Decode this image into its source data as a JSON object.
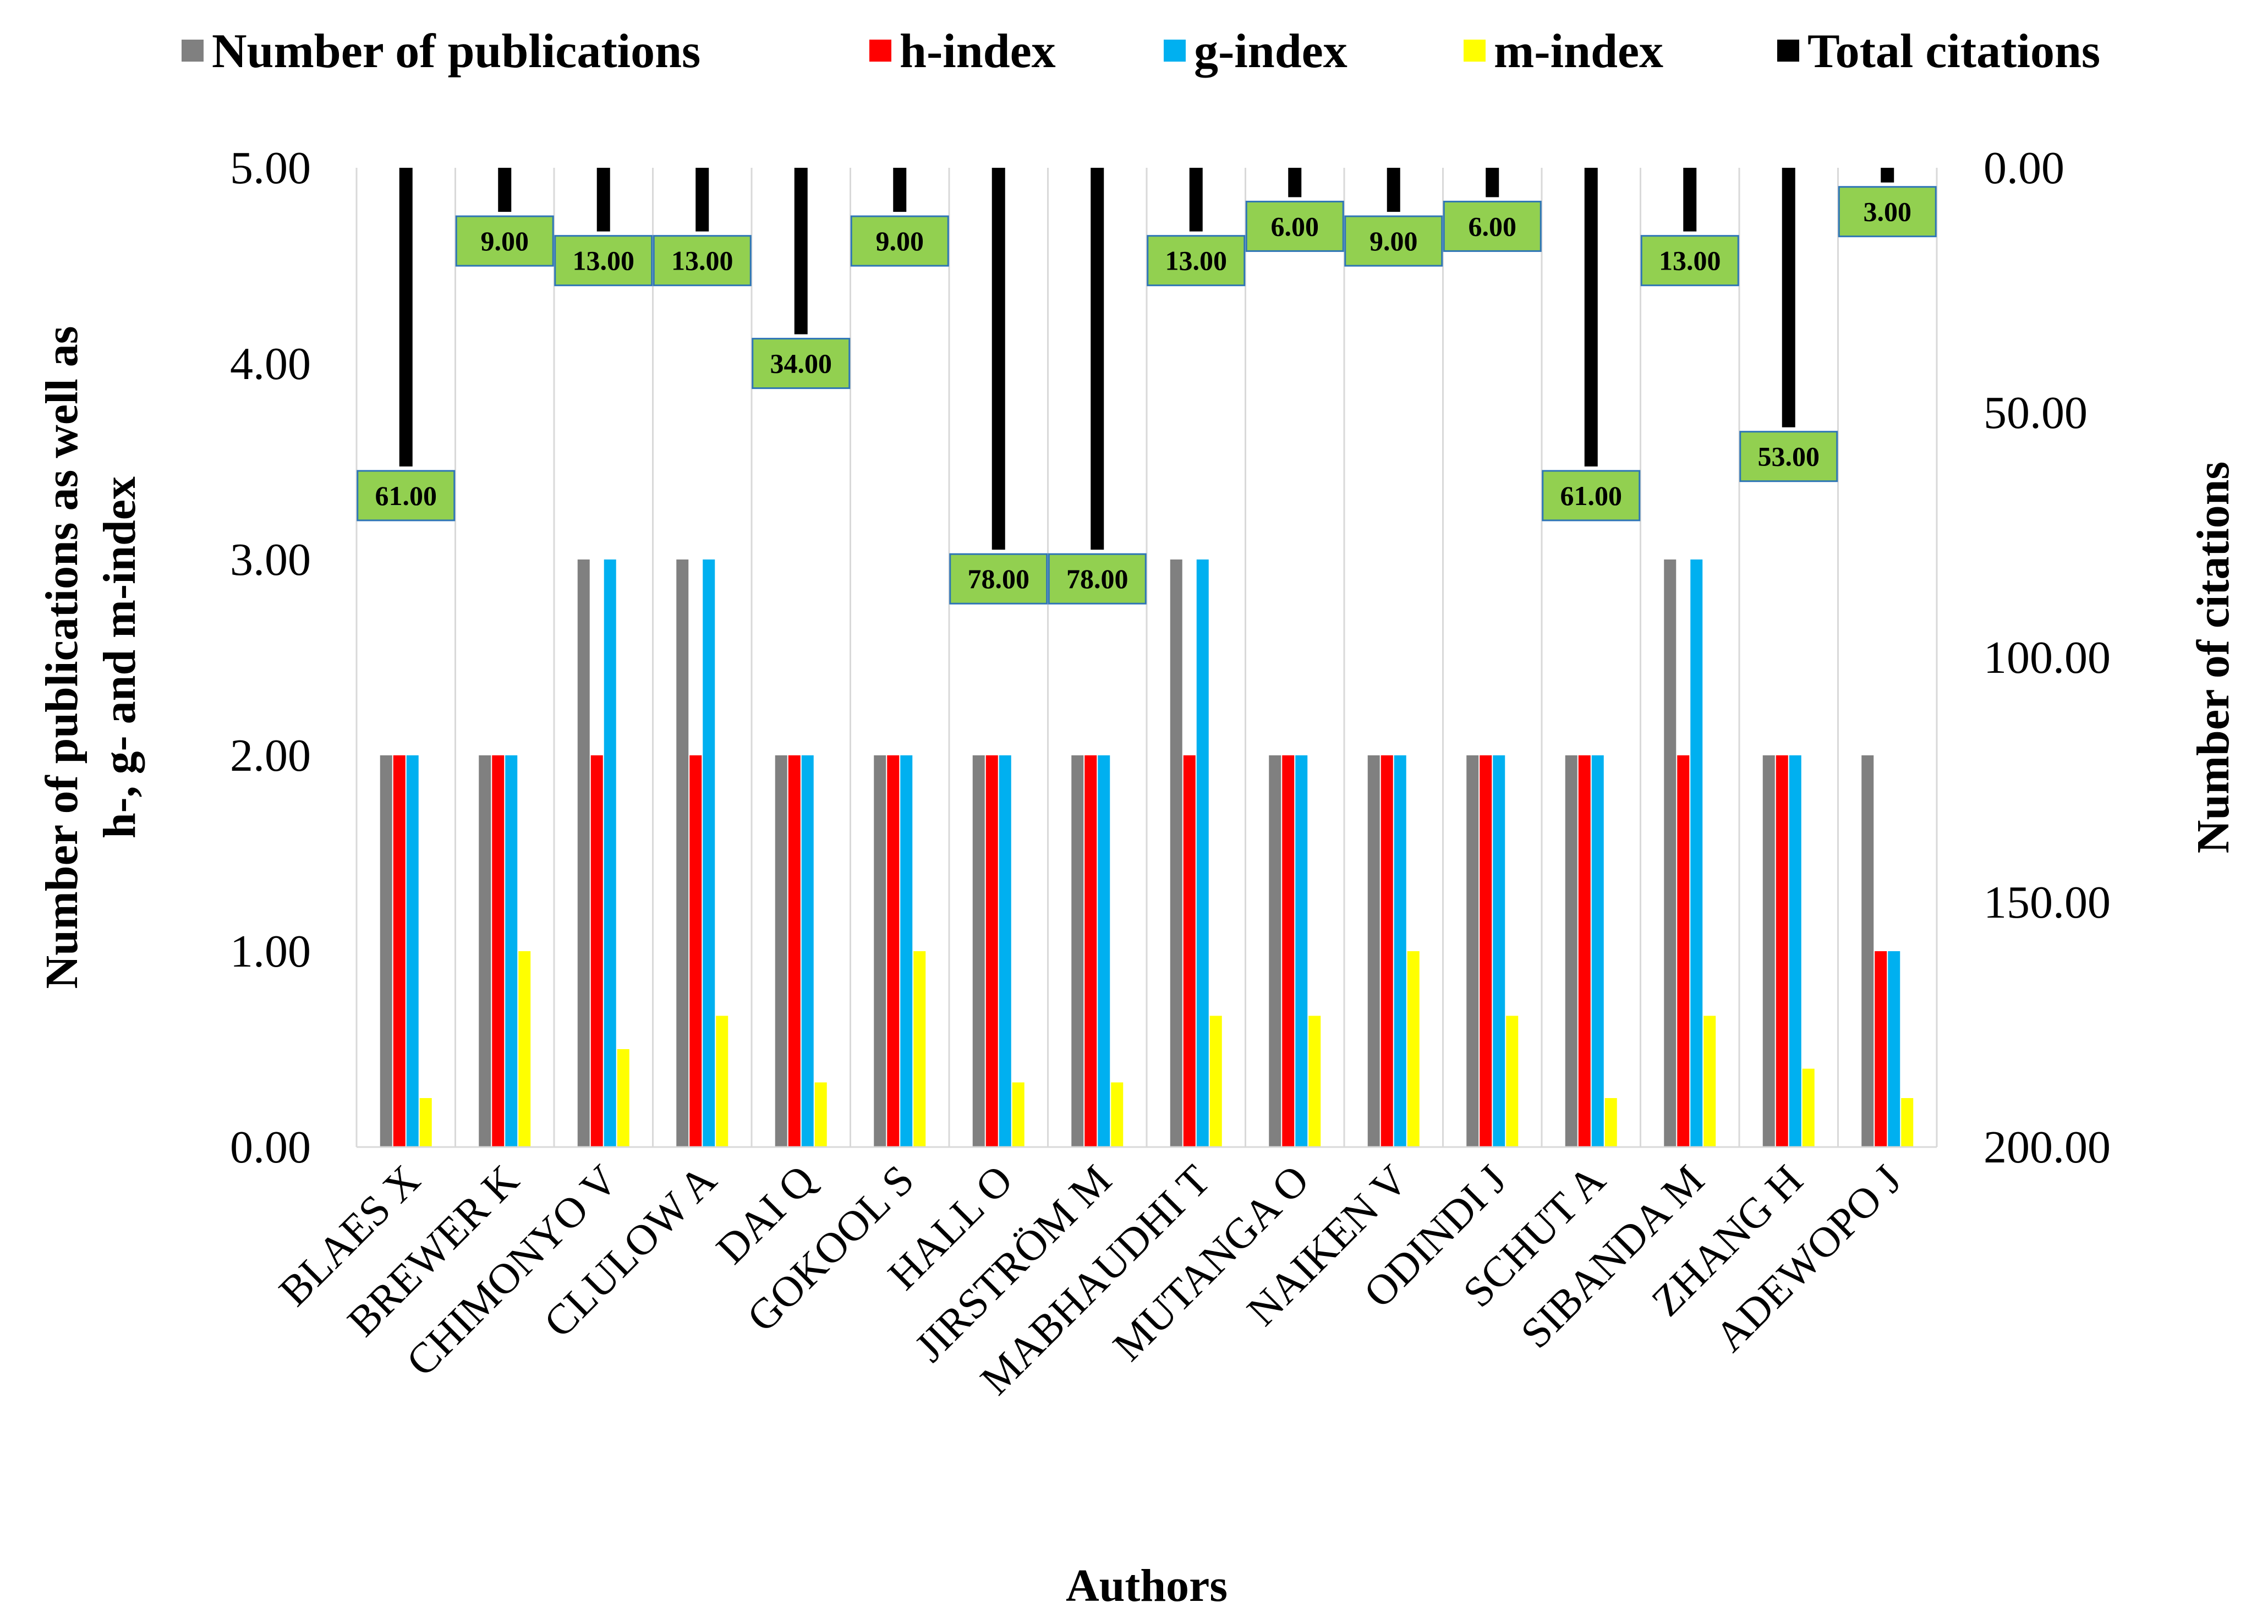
{
  "chart_data": {
    "type": "bar",
    "categories": [
      "BLAES X",
      "BREWER K",
      "CHIMONYO V",
      "CLULOW A",
      "DAI Q",
      "GOKOOL S",
      "HALL O",
      "JIRSTRÖM M",
      "MABHAUDHI T",
      "MUTANGA O",
      "NAIKEN V",
      "ODINDI J",
      "SCHUT A",
      "SIBANDA M",
      "ZHANG H",
      "ADEWOPO J"
    ],
    "series": [
      {
        "name": "Number of publications",
        "axis": "left",
        "color": "#808080",
        "values": [
          2,
          2,
          3,
          3,
          2,
          2,
          2,
          2,
          3,
          2,
          2,
          2,
          2,
          3,
          2,
          2
        ]
      },
      {
        "name": "h-index",
        "axis": "left",
        "color": "#ff0000",
        "values": [
          2,
          2,
          2,
          2,
          2,
          2,
          2,
          2,
          2,
          2,
          2,
          2,
          2,
          2,
          2,
          1
        ]
      },
      {
        "name": "g-index",
        "axis": "left",
        "color": "#00b0f0",
        "values": [
          2,
          2,
          3,
          3,
          2,
          2,
          2,
          2,
          3,
          2,
          2,
          2,
          2,
          3,
          2,
          1
        ]
      },
      {
        "name": "m-index",
        "axis": "left",
        "color": "#ffff00",
        "values": [
          0.25,
          1.0,
          0.5,
          0.67,
          0.33,
          1.0,
          0.33,
          0.33,
          0.67,
          0.67,
          1.0,
          0.67,
          0.25,
          0.67,
          0.4,
          0.25
        ]
      },
      {
        "name": "Total citations",
        "axis": "right",
        "color": "#000000",
        "values": [
          61,
          9,
          13,
          13,
          34,
          9,
          78,
          78,
          13,
          6,
          9,
          6,
          61,
          13,
          53,
          3
        ],
        "labels": [
          "61.00",
          "9.00",
          "13.00",
          "13.00",
          "34.00",
          "9.00",
          "78.00",
          "78.00",
          "13.00",
          "6.00",
          "9.00",
          "6.00",
          "61.00",
          "13.00",
          "53.00",
          "3.00"
        ]
      }
    ],
    "ylabel": "Number of publications as well as h-, g- and m-index",
    "ylabel_lines": [
      "Number of publications as well as",
      "h-, g- and m-index"
    ],
    "y2label": "Number of citations",
    "xlabel": "Authors",
    "ylim": [
      0,
      5
    ],
    "y2lim": [
      0,
      200
    ],
    "y2_inverted": true,
    "y_ticks": [
      "0.00",
      "1.00",
      "2.00",
      "3.00",
      "4.00",
      "5.00"
    ],
    "y2_ticks": [
      "0.00",
      "50.00",
      "100.00",
      "150.00",
      "200.00"
    ],
    "label_box_color": "#92d050",
    "label_border_color": "#2e75b6",
    "legend_position": "top"
  }
}
